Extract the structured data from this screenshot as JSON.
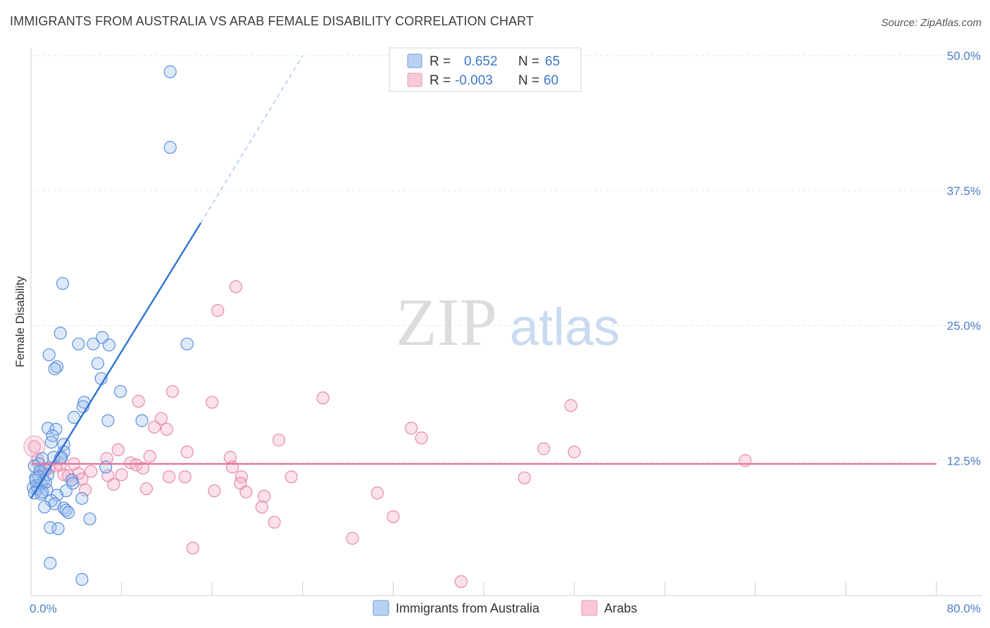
{
  "chart_data": {
    "type": "scatter",
    "title": "IMMIGRANTS FROM AUSTRALIA VS ARAB FEMALE DISABILITY CORRELATION CHART",
    "source": "Source: ZipAtlas.com",
    "ylabel": "Female Disability",
    "xlim": [
      0,
      80
    ],
    "ylim": [
      0,
      50
    ],
    "x_tick_labels": [
      "0.0%",
      "80.0%"
    ],
    "y_ticks": [
      12.5,
      25.0,
      37.5,
      50.0
    ],
    "y_tick_labels": [
      "12.5%",
      "25.0%",
      "37.5%",
      "50.0%"
    ],
    "watermark": {
      "zip": "ZIP",
      "atlas": "atlas"
    },
    "colors": {
      "blue": "#4a85d6",
      "pink": "#e57a9e",
      "blue_line": "#2f74cf",
      "pink_line": "#e8709a"
    },
    "legend": [
      {
        "r_label": "R =",
        "r_value": "0.652",
        "n_label": "N =",
        "n_value": "65"
      },
      {
        "r_label": "R =",
        "r_value": "-0.003",
        "n_label": "N =",
        "n_value": "60"
      }
    ],
    "series": [
      {
        "name": "Immigrants from Australia",
        "trend": {
          "x0": 0,
          "y0": 9.0,
          "x1": 15,
          "y1": 34.5,
          "dash_to_x": 24,
          "dash_to_y": 50
        },
        "points": [
          [
            12.3,
            48.5
          ],
          [
            12.3,
            41.5
          ],
          [
            2.8,
            28.9
          ],
          [
            2.6,
            24.3
          ],
          [
            4.2,
            23.3
          ],
          [
            5.5,
            23.3
          ],
          [
            6.3,
            23.9
          ],
          [
            6.9,
            23.2
          ],
          [
            13.8,
            23.3
          ],
          [
            1.6,
            22.3
          ],
          [
            2.3,
            21.2
          ],
          [
            2.1,
            21.0
          ],
          [
            5.9,
            21.5
          ],
          [
            6.2,
            20.1
          ],
          [
            7.9,
            18.9
          ],
          [
            4.7,
            17.9
          ],
          [
            4.6,
            17.5
          ],
          [
            3.8,
            16.5
          ],
          [
            6.8,
            16.2
          ],
          [
            9.8,
            16.2
          ],
          [
            1.5,
            15.5
          ],
          [
            2.2,
            15.4
          ],
          [
            1.9,
            14.8
          ],
          [
            1.8,
            14.2
          ],
          [
            2.9,
            14.0
          ],
          [
            2.9,
            13.3
          ],
          [
            2.7,
            12.8
          ],
          [
            2.0,
            12.8
          ],
          [
            1.0,
            12.7
          ],
          [
            0.7,
            12.2
          ],
          [
            0.3,
            12.0
          ],
          [
            6.6,
            11.9
          ],
          [
            1.2,
            11.7
          ],
          [
            0.8,
            11.5
          ],
          [
            1.5,
            11.2
          ],
          [
            0.4,
            10.9
          ],
          [
            1.1,
            10.6
          ],
          [
            3.6,
            10.7
          ],
          [
            0.9,
            10.3
          ],
          [
            0.5,
            10.2
          ],
          [
            0.2,
            10.0
          ],
          [
            0.6,
            9.9
          ],
          [
            1.4,
            9.8
          ],
          [
            3.1,
            9.7
          ],
          [
            0.3,
            9.5
          ],
          [
            0.9,
            9.4
          ],
          [
            2.3,
            9.3
          ],
          [
            4.5,
            9.0
          ],
          [
            1.8,
            8.8
          ],
          [
            2.1,
            8.5
          ],
          [
            1.2,
            8.2
          ],
          [
            2.9,
            8.1
          ],
          [
            3.1,
            7.9
          ],
          [
            3.3,
            7.7
          ],
          [
            5.2,
            7.1
          ],
          [
            1.7,
            6.3
          ],
          [
            2.4,
            6.2
          ],
          [
            1.7,
            3.0
          ],
          [
            4.5,
            1.5
          ],
          [
            1.3,
            10.5
          ],
          [
            0.7,
            11.0
          ],
          [
            3.7,
            10.4
          ],
          [
            2.6,
            12.7
          ],
          [
            1.0,
            9.6
          ],
          [
            0.4,
            10.7
          ]
        ]
      },
      {
        "name": "Arabs",
        "trend": {
          "x0": 0,
          "y0": 12.2,
          "x1": 80,
          "y1": 12.2
        },
        "points": [
          [
            18.1,
            28.6
          ],
          [
            16.5,
            26.4
          ],
          [
            12.5,
            18.9
          ],
          [
            25.8,
            18.3
          ],
          [
            47.7,
            17.6
          ],
          [
            9.5,
            18.0
          ],
          [
            16.0,
            17.9
          ],
          [
            11.5,
            16.4
          ],
          [
            10.9,
            15.6
          ],
          [
            12.0,
            15.4
          ],
          [
            33.6,
            15.5
          ],
          [
            34.5,
            14.6
          ],
          [
            21.9,
            14.4
          ],
          [
            45.3,
            13.6
          ],
          [
            48.0,
            13.3
          ],
          [
            7.7,
            13.5
          ],
          [
            13.8,
            13.3
          ],
          [
            10.5,
            12.9
          ],
          [
            17.6,
            12.8
          ],
          [
            6.7,
            12.7
          ],
          [
            63.1,
            12.5
          ],
          [
            8.8,
            12.3
          ],
          [
            9.3,
            12.1
          ],
          [
            2.6,
            12.1
          ],
          [
            3.8,
            12.2
          ],
          [
            17.8,
            11.9
          ],
          [
            9.9,
            11.8
          ],
          [
            0.9,
            11.7
          ],
          [
            2.2,
            12.0
          ],
          [
            1.3,
            11.6
          ],
          [
            5.3,
            11.5
          ],
          [
            4.2,
            11.3
          ],
          [
            2.9,
            11.2
          ],
          [
            3.3,
            11.1
          ],
          [
            8.0,
            11.2
          ],
          [
            6.8,
            11.1
          ],
          [
            12.2,
            11.0
          ],
          [
            13.6,
            11.0
          ],
          [
            18.6,
            11.0
          ],
          [
            23.0,
            11.0
          ],
          [
            43.6,
            10.9
          ],
          [
            3.6,
            10.7
          ],
          [
            4.5,
            10.8
          ],
          [
            7.3,
            10.3
          ],
          [
            18.5,
            10.4
          ],
          [
            10.2,
            9.9
          ],
          [
            16.2,
            9.7
          ],
          [
            19.0,
            9.6
          ],
          [
            4.8,
            9.8
          ],
          [
            30.6,
            9.5
          ],
          [
            20.6,
            9.2
          ],
          [
            20.4,
            8.2
          ],
          [
            32.0,
            7.3
          ],
          [
            21.5,
            6.8
          ],
          [
            28.4,
            5.3
          ],
          [
            14.3,
            4.4
          ],
          [
            38.0,
            1.3
          ],
          [
            0.3,
            13.8
          ],
          [
            0.6,
            12.6
          ],
          [
            1.6,
            11.8
          ]
        ]
      }
    ]
  }
}
